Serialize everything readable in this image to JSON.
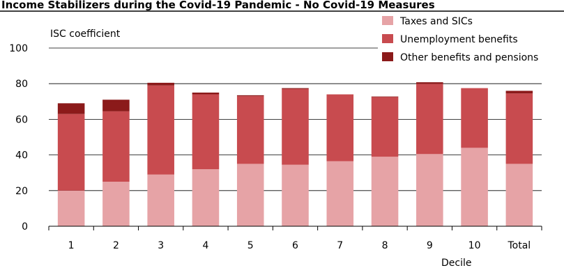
{
  "chart_data": {
    "type": "bar",
    "stacked": true,
    "title": "Income Stabilizers during the Covid-19 Pandemic - No Covid-19 Measures",
    "ylabel": "ISC coefficient",
    "xlabel": "Decile",
    "ylim": [
      0,
      100
    ],
    "yticks": [
      0,
      20,
      40,
      60,
      80,
      100
    ],
    "grid": true,
    "legend_position": "top-right",
    "categories": [
      "1",
      "2",
      "3",
      "4",
      "5",
      "6",
      "7",
      "8",
      "9",
      "10",
      "Total"
    ],
    "series": [
      {
        "name": "Taxes and SICs",
        "color": "#e6a3a6",
        "values": [
          20,
          25,
          29,
          32,
          35,
          34.5,
          36.5,
          39,
          40.5,
          44,
          35
        ]
      },
      {
        "name": "Unemployment benefits",
        "color": "#c84b4f",
        "values": [
          43,
          39.5,
          50,
          42,
          38,
          42.5,
          37.5,
          33.5,
          39.5,
          33.5,
          39.5
        ]
      },
      {
        "name": "Other benefits and pensions",
        "color": "#8b1a1a",
        "values": [
          6,
          6.5,
          1.5,
          1,
          0.5,
          0.5,
          0,
          0.3,
          0.8,
          0,
          1.5
        ]
      }
    ]
  }
}
